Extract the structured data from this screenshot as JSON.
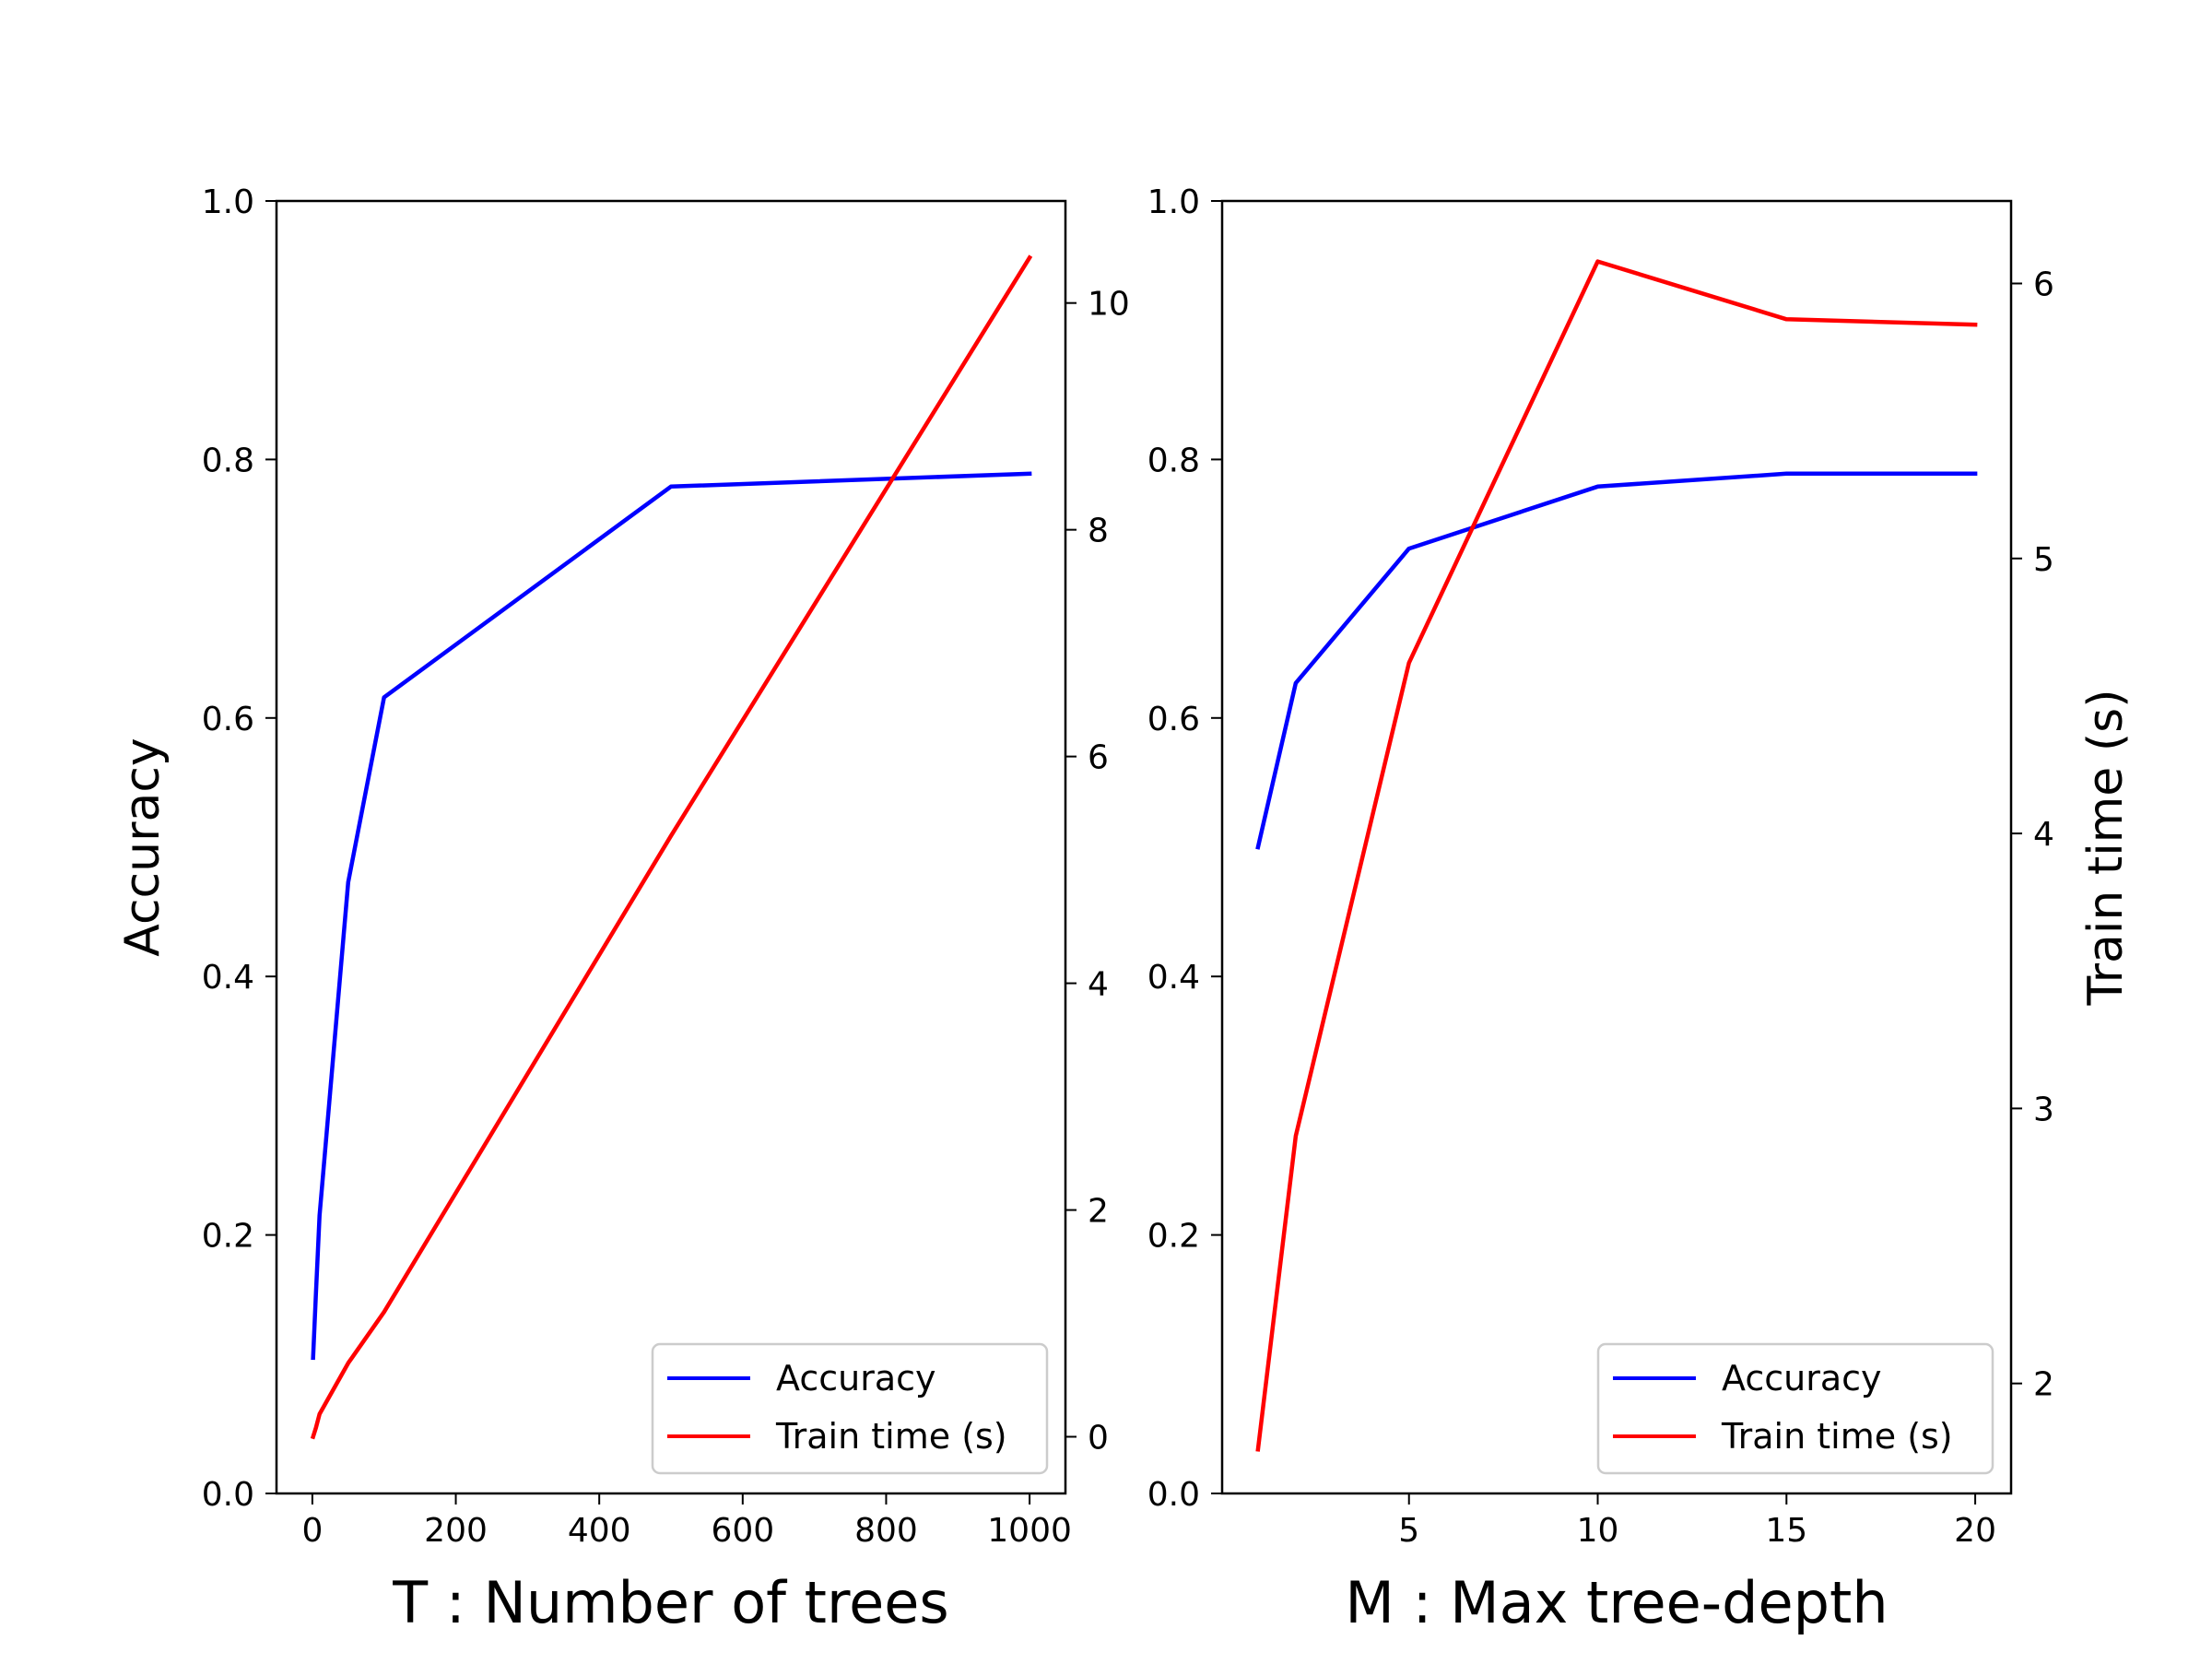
{
  "chart_data": [
    {
      "type": "line",
      "xlabel": "T : Number of trees",
      "ylabel": "Accuracy",
      "y2label": "",
      "xlim": [
        -50,
        1050
      ],
      "ylim": [
        0,
        1.0
      ],
      "y2lim": [
        -0.5,
        10.9
      ],
      "xticks": [
        "0",
        "200",
        "400",
        "600",
        "800",
        "1000"
      ],
      "yticks": [
        "0.0",
        "0.2",
        "0.4",
        "0.6",
        "0.8",
        "1.0"
      ],
      "y2ticks": [
        "0",
        "2",
        "4",
        "6",
        "8",
        "10"
      ],
      "legend": "lower-right",
      "grid": false,
      "series": [
        {
          "name": "Accuracy",
          "axis": "left",
          "color": "#0000ff",
          "x": [
            1,
            5,
            10,
            50,
            100,
            500,
            1000
          ],
          "y": [
            0.105,
            0.155,
            0.215,
            0.473,
            0.616,
            0.779,
            0.789
          ]
        },
        {
          "name": "Train time (s)",
          "axis": "right",
          "color": "#ff0000",
          "x": [
            1,
            5,
            10,
            50,
            100,
            500,
            1000
          ],
          "y": [
            0.0,
            0.08,
            0.2,
            0.65,
            1.1,
            5.3,
            10.4
          ]
        }
      ]
    },
    {
      "type": "line",
      "xlabel": "M : Max tree-depth",
      "ylabel": "",
      "y2label": "Train time (s)",
      "xlim": [
        0.05,
        20.95
      ],
      "ylim": [
        0,
        1.0
      ],
      "y2lim": [
        1.6,
        6.3
      ],
      "xticks": [
        "5",
        "10",
        "15",
        "20"
      ],
      "yticks": [
        "0.0",
        "0.2",
        "0.4",
        "0.6",
        "0.8",
        "1.0"
      ],
      "y2ticks": [
        "2",
        "3",
        "4",
        "5",
        "6"
      ],
      "legend": "lower-right",
      "grid": false,
      "series": [
        {
          "name": "Accuracy",
          "axis": "left",
          "color": "#0000ff",
          "x": [
            1,
            2,
            5,
            10,
            15,
            20
          ],
          "y": [
            0.5,
            0.627,
            0.731,
            0.779,
            0.789,
            0.789
          ]
        },
        {
          "name": "Train time (s)",
          "axis": "right",
          "color": "#ff0000",
          "x": [
            1,
            2,
            5,
            10,
            15,
            20
          ],
          "y": [
            1.76,
            2.9,
            4.62,
            6.08,
            5.87,
            5.85
          ]
        }
      ]
    }
  ]
}
